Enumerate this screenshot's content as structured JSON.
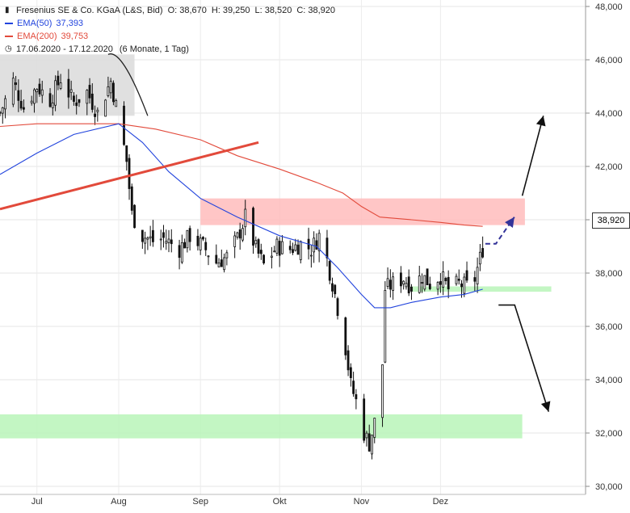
{
  "header": {
    "instrument": "Fresenius SE & Co. KGaA (L&S, Bid)",
    "open_label": "O:",
    "open": "38,670",
    "high_label": "H:",
    "high": "39,250",
    "low_label": "L:",
    "low": "38,520",
    "close_label": "C:",
    "close": "38,920",
    "period": "17.06.2020 - 17.12.2020",
    "interval": "(6 Monate, 1 Tag)"
  },
  "legend": [
    {
      "name": "EMA(50)",
      "value": "37,393",
      "color": "#2244dd"
    },
    {
      "name": "EMA(200)",
      "value": "39,753",
      "color": "#e24a3b"
    }
  ],
  "last_price_label": "38,920",
  "chart_data": {
    "type": "candlestick",
    "y_axis": {
      "min": 30000,
      "max": 48000,
      "ticks": [
        "30,000",
        "32,000",
        "34,000",
        "36,000",
        "38,000",
        "40,000",
        "42,000",
        "44,000",
        "46,000",
        "48,000"
      ],
      "grid": true,
      "position": "right"
    },
    "x_ticks": [
      {
        "label": "Jul",
        "date": "2020-07-01"
      },
      {
        "label": "Aug",
        "date": "2020-08-01"
      },
      {
        "label": "Sep",
        "date": "2020-09-01"
      },
      {
        "label": "Okt",
        "date": "2020-10-01"
      },
      {
        "label": "Nov",
        "date": "2020-11-01"
      },
      {
        "label": "Dez",
        "date": "2020-12-01"
      }
    ],
    "x_range": [
      "2020-06-17",
      "2021-01-25"
    ],
    "close_path": [
      [
        "2020-06-17",
        44.0
      ],
      [
        "2020-06-22",
        45.2
      ],
      [
        "2020-06-26",
        44.2
      ],
      [
        "2020-07-01",
        45.0
      ],
      [
        "2020-07-06",
        44.5
      ],
      [
        "2020-07-10",
        45.3
      ],
      [
        "2020-07-15",
        44.4
      ],
      [
        "2020-07-20",
        44.8
      ],
      [
        "2020-07-24",
        44.0
      ],
      [
        "2020-07-29",
        45.2
      ],
      [
        "2020-08-01",
        43.8
      ],
      [
        "2020-08-04",
        42.2
      ],
      [
        "2020-08-06",
        40.2
      ],
      [
        "2020-08-10",
        39.4
      ],
      [
        "2020-08-14",
        39.2
      ],
      [
        "2020-08-18",
        39.3
      ],
      [
        "2020-08-24",
        38.9
      ],
      [
        "2020-08-28",
        39.4
      ],
      [
        "2020-09-02",
        39.0
      ],
      [
        "2020-09-07",
        38.4
      ],
      [
        "2020-09-11",
        38.6
      ],
      [
        "2020-09-15",
        39.3
      ],
      [
        "2020-09-18",
        40.1
      ],
      [
        "2020-09-22",
        38.9
      ],
      [
        "2020-09-25",
        38.3
      ],
      [
        "2020-09-30",
        39.0
      ],
      [
        "2020-10-05",
        38.9
      ],
      [
        "2020-10-09",
        39.1
      ],
      [
        "2020-10-13",
        38.9
      ],
      [
        "2020-10-16",
        39.4
      ],
      [
        "2020-10-19",
        38.5
      ],
      [
        "2020-10-22",
        37.2
      ],
      [
        "2020-10-26",
        35.2
      ],
      [
        "2020-10-28",
        33.8
      ],
      [
        "2020-10-30",
        33.2
      ],
      [
        "2020-11-02",
        32.0
      ],
      [
        "2020-11-04",
        31.6
      ],
      [
        "2020-11-06",
        32.4
      ],
      [
        "2020-11-09",
        34.6
      ],
      [
        "2020-11-10",
        37.4
      ],
      [
        "2020-11-13",
        37.6
      ],
      [
        "2020-11-17",
        37.8
      ],
      [
        "2020-11-20",
        37.5
      ],
      [
        "2020-11-24",
        37.9
      ],
      [
        "2020-11-27",
        37.6
      ],
      [
        "2020-12-01",
        37.9
      ],
      [
        "2020-12-04",
        37.4
      ],
      [
        "2020-12-08",
        37.6
      ],
      [
        "2020-12-11",
        37.5
      ],
      [
        "2020-12-14",
        37.8
      ],
      [
        "2020-12-17",
        38.92
      ]
    ],
    "ema50": [
      [
        "2020-06-17",
        41.7
      ],
      [
        "2020-07-01",
        42.5
      ],
      [
        "2020-07-15",
        43.2
      ],
      [
        "2020-08-01",
        43.6
      ],
      [
        "2020-08-10",
        42.9
      ],
      [
        "2020-08-20",
        41.8
      ],
      [
        "2020-09-01",
        40.8
      ],
      [
        "2020-09-15",
        40.1
      ],
      [
        "2020-10-01",
        39.4
      ],
      [
        "2020-10-15",
        39.0
      ],
      [
        "2020-10-23",
        38.2
      ],
      [
        "2020-11-01",
        37.2
      ],
      [
        "2020-11-06",
        36.7
      ],
      [
        "2020-11-12",
        36.7
      ],
      [
        "2020-11-20",
        36.9
      ],
      [
        "2020-12-01",
        37.1
      ],
      [
        "2020-12-10",
        37.2
      ],
      [
        "2020-12-17",
        37.393
      ]
    ],
    "ema200": [
      [
        "2020-06-17",
        43.5
      ],
      [
        "2020-07-01",
        43.6
      ],
      [
        "2020-07-15",
        43.6
      ],
      [
        "2020-08-01",
        43.6
      ],
      [
        "2020-08-15",
        43.4
      ],
      [
        "2020-09-01",
        43.0
      ],
      [
        "2020-09-15",
        42.4
      ],
      [
        "2020-10-01",
        41.9
      ],
      [
        "2020-10-15",
        41.4
      ],
      [
        "2020-10-25",
        41.0
      ],
      [
        "2020-11-01",
        40.5
      ],
      [
        "2020-11-08",
        40.1
      ],
      [
        "2020-11-20",
        40.0
      ],
      [
        "2020-12-01",
        39.9
      ],
      [
        "2020-12-10",
        39.8
      ],
      [
        "2020-12-17",
        39.753
      ]
    ],
    "zones": [
      {
        "kind": "resistance",
        "from": "2020-09-01",
        "to": "2021-01-02",
        "y1": 39.8,
        "y2": 40.8,
        "color": "#ffbcbc"
      },
      {
        "kind": "support",
        "from": "2020-11-20",
        "to": "2021-01-12",
        "y1": 37.3,
        "y2": 37.5,
        "color": "#b8f5b8"
      },
      {
        "kind": "support",
        "from": "2020-06-17",
        "to": "2021-01-01",
        "y1": 31.8,
        "y2": 32.7,
        "color": "#b8f5b8"
      },
      {
        "kind": "top",
        "from": "2020-06-17",
        "to": "2020-08-07",
        "y1": 43.9,
        "y2": 46.2,
        "color": "#dddddd"
      }
    ],
    "trendline": {
      "from": [
        "2020-06-17",
        40.4
      ],
      "to": [
        "2020-09-23",
        42.9
      ],
      "color": "#e24a3b"
    },
    "arch": {
      "from": [
        "2020-07-28",
        46.2
      ],
      "to": [
        "2020-08-12",
        43.9
      ],
      "color": "#222222"
    },
    "arrows": [
      {
        "kind": "up",
        "from": [
          "2021-01-01",
          40.9
        ],
        "to": [
          "2021-01-09",
          43.9
        ],
        "color": "#111111"
      },
      {
        "kind": "down",
        "from": [
          "2020-12-23",
          36.8
        ],
        "to": [
          "2021-01-11",
          32.8
        ],
        "color": "#111111"
      },
      {
        "kind": "projection",
        "points": [
          [
            "2020-12-18",
            39.1
          ],
          [
            "2020-12-22",
            39.1
          ],
          [
            "2020-12-29",
            40.1
          ]
        ],
        "color": "#333399"
      }
    ]
  }
}
